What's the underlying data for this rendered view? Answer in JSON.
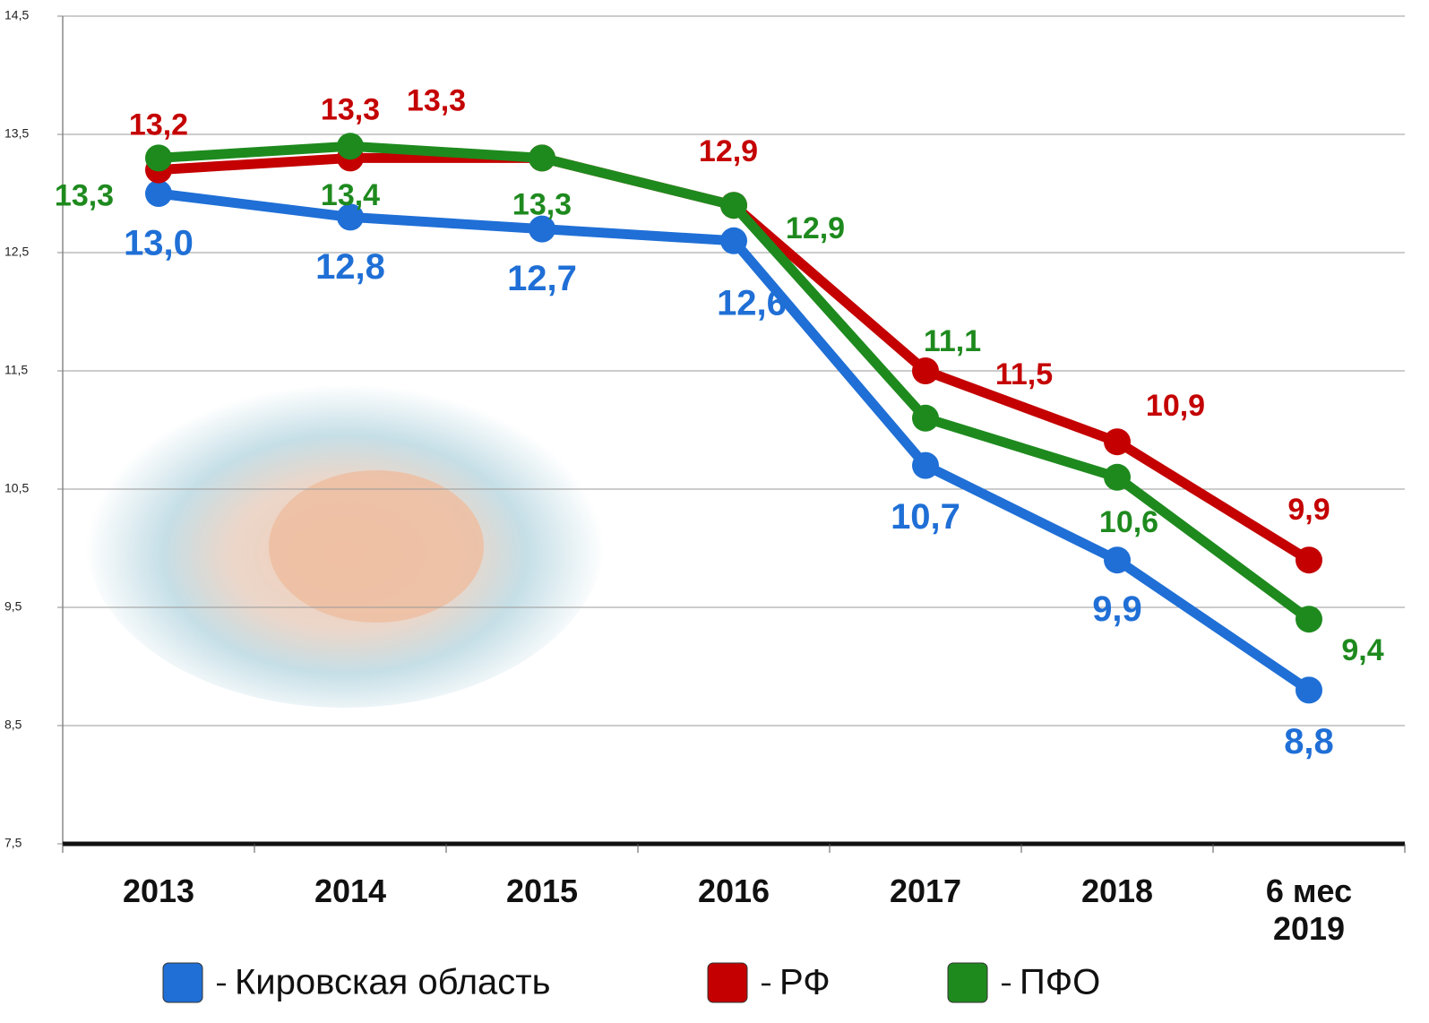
{
  "chart_data": {
    "type": "line",
    "categories": [
      "2013",
      "2014",
      "2015",
      "2016",
      "2017",
      "2018",
      "6 мес 2019"
    ],
    "ylim": [
      7.5,
      14.5
    ],
    "yticks": [
      {
        "value": 7.5,
        "label": "7,5"
      },
      {
        "value": 8.5,
        "label": "8,5"
      },
      {
        "value": 9.5,
        "label": "9,5"
      },
      {
        "value": 10.5,
        "label": "10,5"
      },
      {
        "value": 11.5,
        "label": "11,5"
      },
      {
        "value": 12.5,
        "label": "12,5"
      },
      {
        "value": 13.5,
        "label": "13,5"
      },
      {
        "value": 14.5,
        "label": "14,5"
      }
    ],
    "grid": true,
    "legend": "bottom",
    "series": [
      {
        "name": "Кировская область",
        "color": "#1f6fd6",
        "values": [
          13.0,
          12.8,
          12.7,
          12.6,
          10.7,
          9.9,
          8.8
        ],
        "value_labels": [
          "13,0",
          "12,8",
          "12,7",
          "12,6",
          "10,7",
          "9,9",
          "8,8"
        ]
      },
      {
        "name": "РФ",
        "color": "#c40000",
        "values": [
          13.2,
          13.3,
          13.3,
          12.9,
          11.5,
          10.9,
          9.9
        ],
        "value_labels": [
          "13,2",
          "13,3",
          "13,3",
          "12,9",
          "11,5",
          "10,9",
          "9,9"
        ]
      },
      {
        "name": "ПФО",
        "color": "#1e8a1e",
        "values": [
          13.3,
          13.4,
          13.3,
          12.9,
          11.1,
          10.6,
          9.4
        ],
        "value_labels": [
          "13,3",
          "13,4",
          "13,3",
          "12,9",
          "11,1",
          "10,6",
          "9,4"
        ]
      }
    ]
  }
}
